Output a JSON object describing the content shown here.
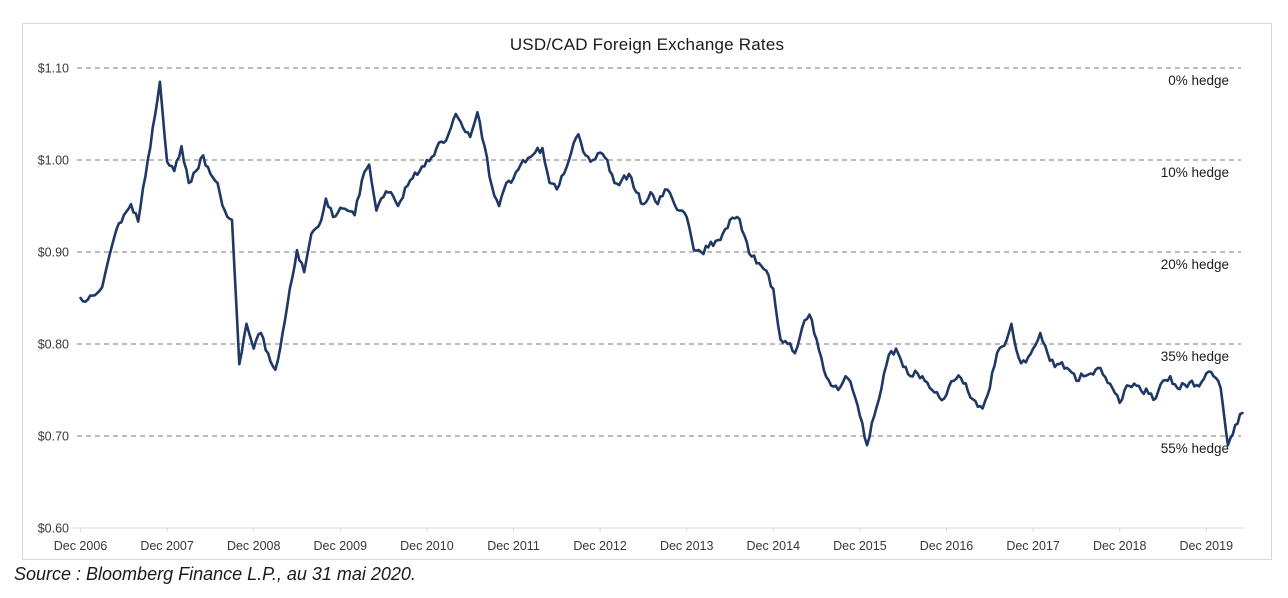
{
  "chart": {
    "title": "USD/CAD Foreign Exchange Rates"
  },
  "source": "Source : Bloomberg Finance L.P., au 31 mai 2020.",
  "chart_data": {
    "type": "line",
    "title": "USD/CAD Foreign Exchange Rates",
    "ylabel": "",
    "xlabel": "",
    "ylim": [
      0.6,
      1.1
    ],
    "grid": "dashed-horizontal",
    "y_ticks": [
      1.1,
      1.0,
      0.9,
      0.8,
      0.7,
      0.6
    ],
    "y_tick_labels": [
      "$1.10",
      "$1.00",
      "$0.90",
      "$0.80",
      "$0.70",
      "$0.60"
    ],
    "x_tick_labels": [
      "Dec 2006",
      "Dec 2007",
      "Dec 2008",
      "Dec 2009",
      "Dec 2010",
      "Dec 2011",
      "Dec 2012",
      "Dec 2013",
      "Dec 2014",
      "Dec 2015",
      "Dec 2016",
      "Dec 2017",
      "Dec 2018",
      "Dec 2019"
    ],
    "hedge_annotations": [
      {
        "label": "0% hedge",
        "level": 1.1
      },
      {
        "label": "10% hedge",
        "level": 1.0
      },
      {
        "label": "20% hedge",
        "level": 0.9
      },
      {
        "label": "35% hedge",
        "level": 0.8
      },
      {
        "label": "55% hedge",
        "level": 0.7
      }
    ],
    "line_color": "#1f3864",
    "grid_color": "#7a7a7a",
    "axis_color": "#d9d9d9",
    "series": [
      {
        "name": "USD/CAD exchange rate (USD per CAD)",
        "frequency": "monthly",
        "x_start": "Dec 2006",
        "x_end": "May 2020",
        "values": [
          0.85,
          0.848,
          0.853,
          0.862,
          0.896,
          0.925,
          0.94,
          0.952,
          0.933,
          0.982,
          1.035,
          1.085,
          0.998,
          0.988,
          1.015,
          0.975,
          0.988,
          1.005,
          0.985,
          0.975,
          0.945,
          0.935,
          0.778,
          0.822,
          0.795,
          0.812,
          0.79,
          0.772,
          0.812,
          0.86,
          0.902,
          0.878,
          0.92,
          0.928,
          0.958,
          0.938,
          0.948,
          0.945,
          0.94,
          0.978,
          0.995,
          0.945,
          0.96,
          0.965,
          0.95,
          0.97,
          0.98,
          0.988,
          1.0,
          1.005,
          1.02,
          1.028,
          1.05,
          1.035,
          1.025,
          1.052,
          1.015,
          0.972,
          0.95,
          0.975,
          0.98,
          0.995,
          1.002,
          1.008,
          1.013,
          0.975,
          0.968,
          0.985,
          1.008,
          1.028,
          1.005,
          1.0,
          1.008,
          1.0,
          0.975,
          0.978,
          0.985,
          0.965,
          0.952,
          0.965,
          0.952,
          0.968,
          0.958,
          0.945,
          0.938,
          0.902,
          0.9,
          0.905,
          0.912,
          0.92,
          0.935,
          0.938,
          0.918,
          0.895,
          0.888,
          0.88,
          0.86,
          0.805,
          0.8,
          0.79,
          0.818,
          0.832,
          0.805,
          0.772,
          0.755,
          0.75,
          0.765,
          0.75,
          0.722,
          0.69,
          0.722,
          0.752,
          0.788,
          0.795,
          0.775,
          0.765,
          0.768,
          0.76,
          0.75,
          0.742,
          0.745,
          0.76,
          0.763,
          0.748,
          0.738,
          0.73,
          0.752,
          0.79,
          0.798,
          0.822,
          0.785,
          0.78,
          0.795,
          0.812,
          0.79,
          0.775,
          0.78,
          0.772,
          0.76,
          0.765,
          0.768,
          0.774,
          0.764,
          0.752,
          0.736,
          0.755,
          0.757,
          0.749,
          0.746,
          0.741,
          0.76,
          0.765,
          0.752,
          0.756,
          0.76,
          0.754,
          0.768,
          0.765,
          0.752,
          0.69,
          0.712,
          0.725
        ]
      }
    ]
  }
}
